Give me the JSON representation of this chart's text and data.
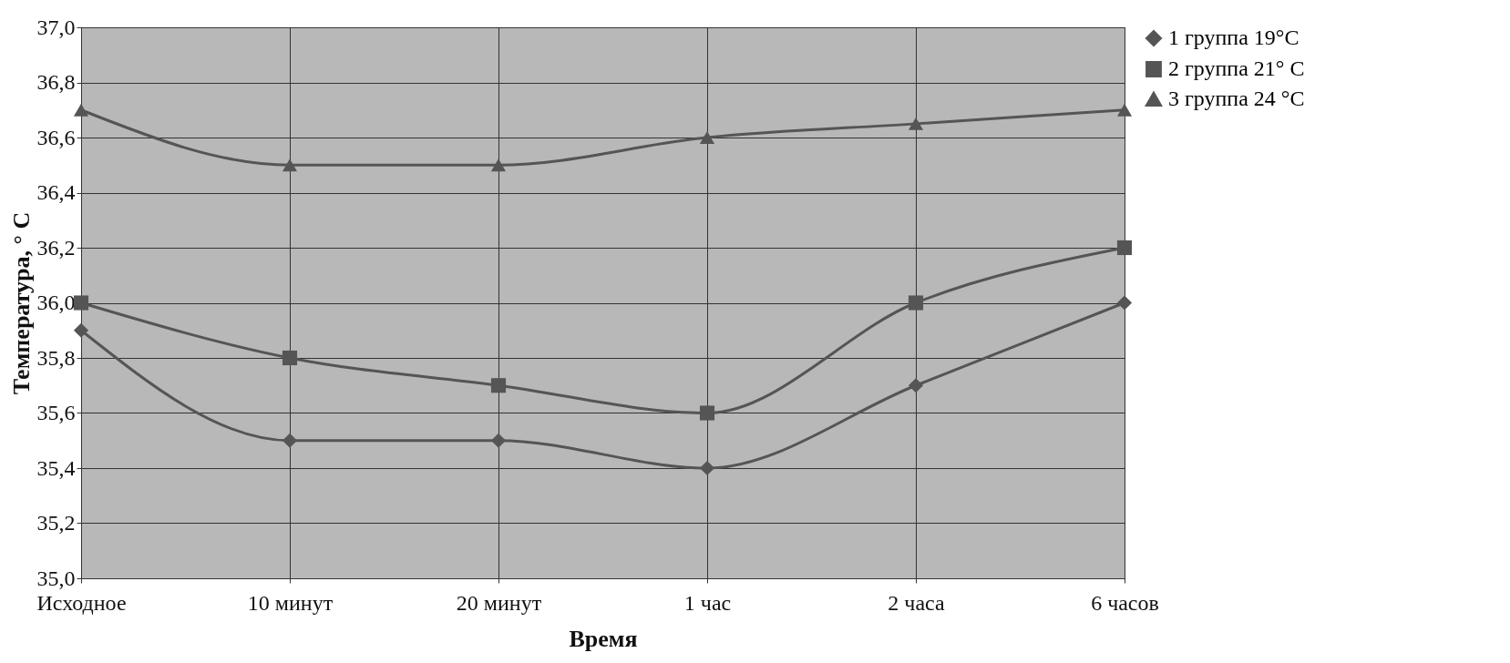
{
  "chart_data": {
    "type": "line",
    "xlabel": "Время",
    "ylabel": "Температура, ° C",
    "categories": [
      "Исходное",
      "10 минут",
      "20 минут",
      "1 час",
      "2 часа",
      "6 часов"
    ],
    "series": [
      {
        "name": "1 группа 19°C",
        "color": "#555555",
        "marker": "diamond",
        "values": [
          35.9,
          35.5,
          35.5,
          35.4,
          35.7,
          36.0
        ]
      },
      {
        "name": "2 группа 21° C",
        "color": "#555555",
        "marker": "square",
        "values": [
          36.0,
          35.8,
          35.7,
          35.6,
          36.0,
          36.2
        ]
      },
      {
        "name": "3 группа 24 °C",
        "color": "#555555",
        "marker": "triangle",
        "values": [
          36.7,
          36.5,
          36.5,
          36.6,
          36.65,
          36.7
        ]
      }
    ],
    "ylim": [
      35,
      37
    ],
    "yticks": [
      {
        "value": 35,
        "label": "35,0"
      },
      {
        "value": 35.2,
        "label": "35,2"
      },
      {
        "value": 35.4,
        "label": "35,4"
      },
      {
        "value": 35.6,
        "label": "35,6"
      },
      {
        "value": 35.8,
        "label": "35,8"
      },
      {
        "value": 36,
        "label": "36,0"
      },
      {
        "value": 36.2,
        "label": "36,2"
      },
      {
        "value": 36.4,
        "label": "36,4"
      },
      {
        "value": 36.6,
        "label": "36,6"
      },
      {
        "value": 36.8,
        "label": "36,8"
      },
      {
        "value": 37,
        "label": "37,0"
      }
    ],
    "grid": true,
    "legend": "right",
    "line_style": "solid"
  }
}
